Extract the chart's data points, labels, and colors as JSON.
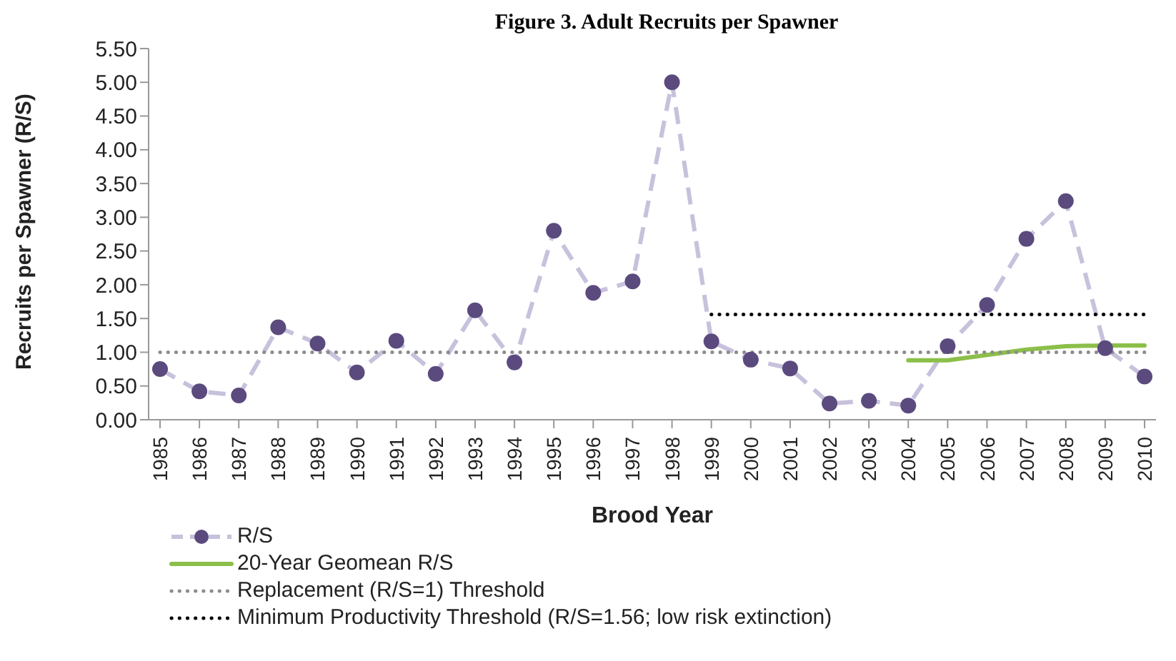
{
  "chart_data": {
    "type": "line",
    "title": "Figure 3. Adult Recruits per Spawner",
    "xlabel": "Brood Year",
    "ylabel": "Recruits per Spawner (R/S)",
    "categories": [
      "1985",
      "1986",
      "1987",
      "1988",
      "1989",
      "1990",
      "1991",
      "1992",
      "1993",
      "1994",
      "1995",
      "1996",
      "1997",
      "1998",
      "1999",
      "2000",
      "2001",
      "2002",
      "2003",
      "2004",
      "2005",
      "2006",
      "2007",
      "2008",
      "2009",
      "2010"
    ],
    "series": [
      {
        "name": "R/S",
        "color": "#c8c1dc",
        "line_style": "dashed",
        "marker": "circle",
        "colors": [
          "#5b4a7e",
          "#5b4a7e",
          "#5b4a7e",
          "#5b4a7e",
          "#5b4a7e",
          "#5b4a7e",
          "#5b4a7e",
          "#5b4a7e",
          "#5b4a7e",
          "#5b4a7e",
          "#5b4a7e",
          "#5b4a7e",
          "#5b4a7e",
          "#5b4a7e",
          "#5b4a7e",
          "#5b4a7e",
          "#5b4a7e",
          "#5b4a7e",
          "#5b4a7e",
          "#5b4a7e",
          "#5b4a7e",
          "#5b4a7e",
          "#5b4a7e",
          "#5b4a7e",
          "#5b4a7e",
          "#5b4a7e"
        ],
        "values": [
          0.75,
          0.42,
          0.36,
          1.37,
          1.13,
          0.7,
          1.17,
          0.68,
          1.62,
          0.85,
          2.8,
          1.88,
          2.05,
          5.0,
          1.16,
          0.89,
          0.76,
          0.24,
          0.28,
          0.21,
          1.09,
          1.7,
          2.68,
          3.24,
          1.06,
          0.64
        ]
      },
      {
        "name": "20-Year Geomean R/S",
        "color": "#8cbf4a",
        "line_style": "solid",
        "marker": "none",
        "values": [
          null,
          null,
          null,
          null,
          null,
          null,
          null,
          null,
          null,
          null,
          null,
          null,
          null,
          null,
          null,
          null,
          null,
          null,
          null,
          0.88,
          0.88,
          0.96,
          1.04,
          1.09,
          1.1,
          1.1
        ]
      },
      {
        "name": "Replacement (R/S=1) Threshold",
        "color": "#8c8c8c",
        "line_style": "dotted",
        "marker": "none",
        "values": [
          1,
          1,
          1,
          1,
          1,
          1,
          1,
          1,
          1,
          1,
          1,
          1,
          1,
          1,
          1,
          1,
          1,
          1,
          1,
          1,
          1,
          1,
          1,
          1,
          1,
          1
        ]
      },
      {
        "name": "Minimum Productivity Threshold (R/S=1.56; low risk extinction)",
        "color": "#000000",
        "line_style": "dotted",
        "marker": "none",
        "values": [
          null,
          null,
          null,
          null,
          null,
          null,
          null,
          null,
          null,
          null,
          null,
          null,
          null,
          null,
          1.56,
          1.56,
          1.56,
          1.56,
          1.56,
          1.56,
          1.56,
          1.56,
          1.56,
          1.56,
          1.56,
          1.56
        ]
      }
    ],
    "ylim": [
      0,
      5.5
    ],
    "yticks": [
      {
        "value": 0,
        "label": "0.00"
      },
      {
        "value": 0.5,
        "label": "0.50"
      },
      {
        "value": 1,
        "label": "1.00"
      },
      {
        "value": 1.5,
        "label": "1.50"
      },
      {
        "value": 2,
        "label": "2.00"
      },
      {
        "value": 2.5,
        "label": "2.50"
      },
      {
        "value": 3,
        "label": "3.00"
      },
      {
        "value": 3.5,
        "label": "3.50"
      },
      {
        "value": 4,
        "label": "4.00"
      },
      {
        "value": 4.5,
        "label": "4.50"
      },
      {
        "value": 5,
        "label": "5.00"
      },
      {
        "value": 5.5,
        "label": "5.50"
      }
    ],
    "grid": false,
    "legend": "bottom left"
  }
}
